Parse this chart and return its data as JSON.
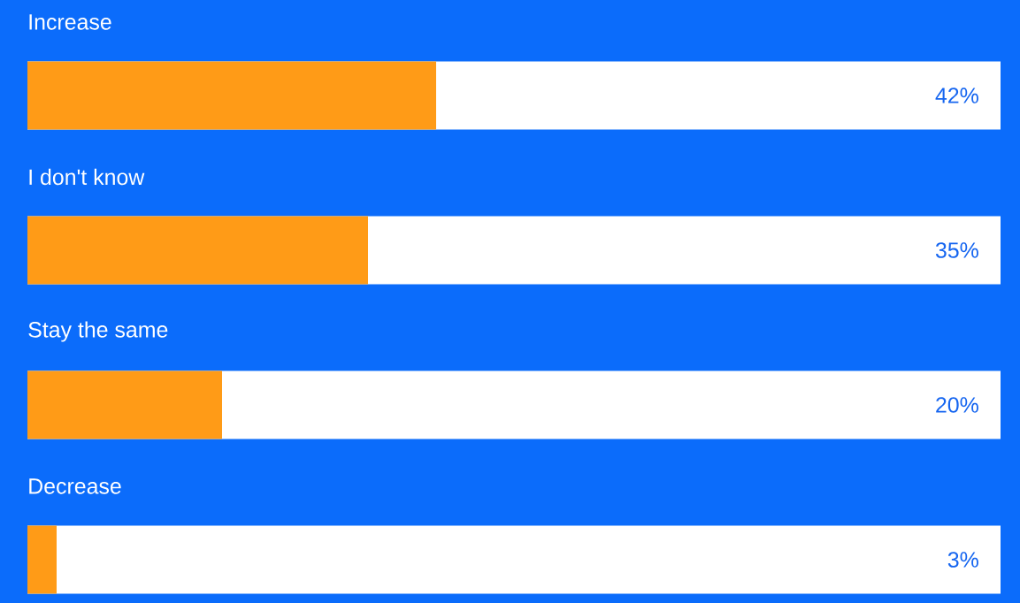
{
  "chart_data": {
    "type": "bar",
    "orientation": "horizontal",
    "categories": [
      "Increase",
      "I don't know",
      "Stay the same",
      "Decrease"
    ],
    "xlim": [
      0,
      100
    ],
    "color": "#ff9b17",
    "values": [
      42,
      35,
      20,
      3
    ],
    "value_labels": [
      "42%",
      "35%",
      "20%",
      "3%"
    ]
  }
}
